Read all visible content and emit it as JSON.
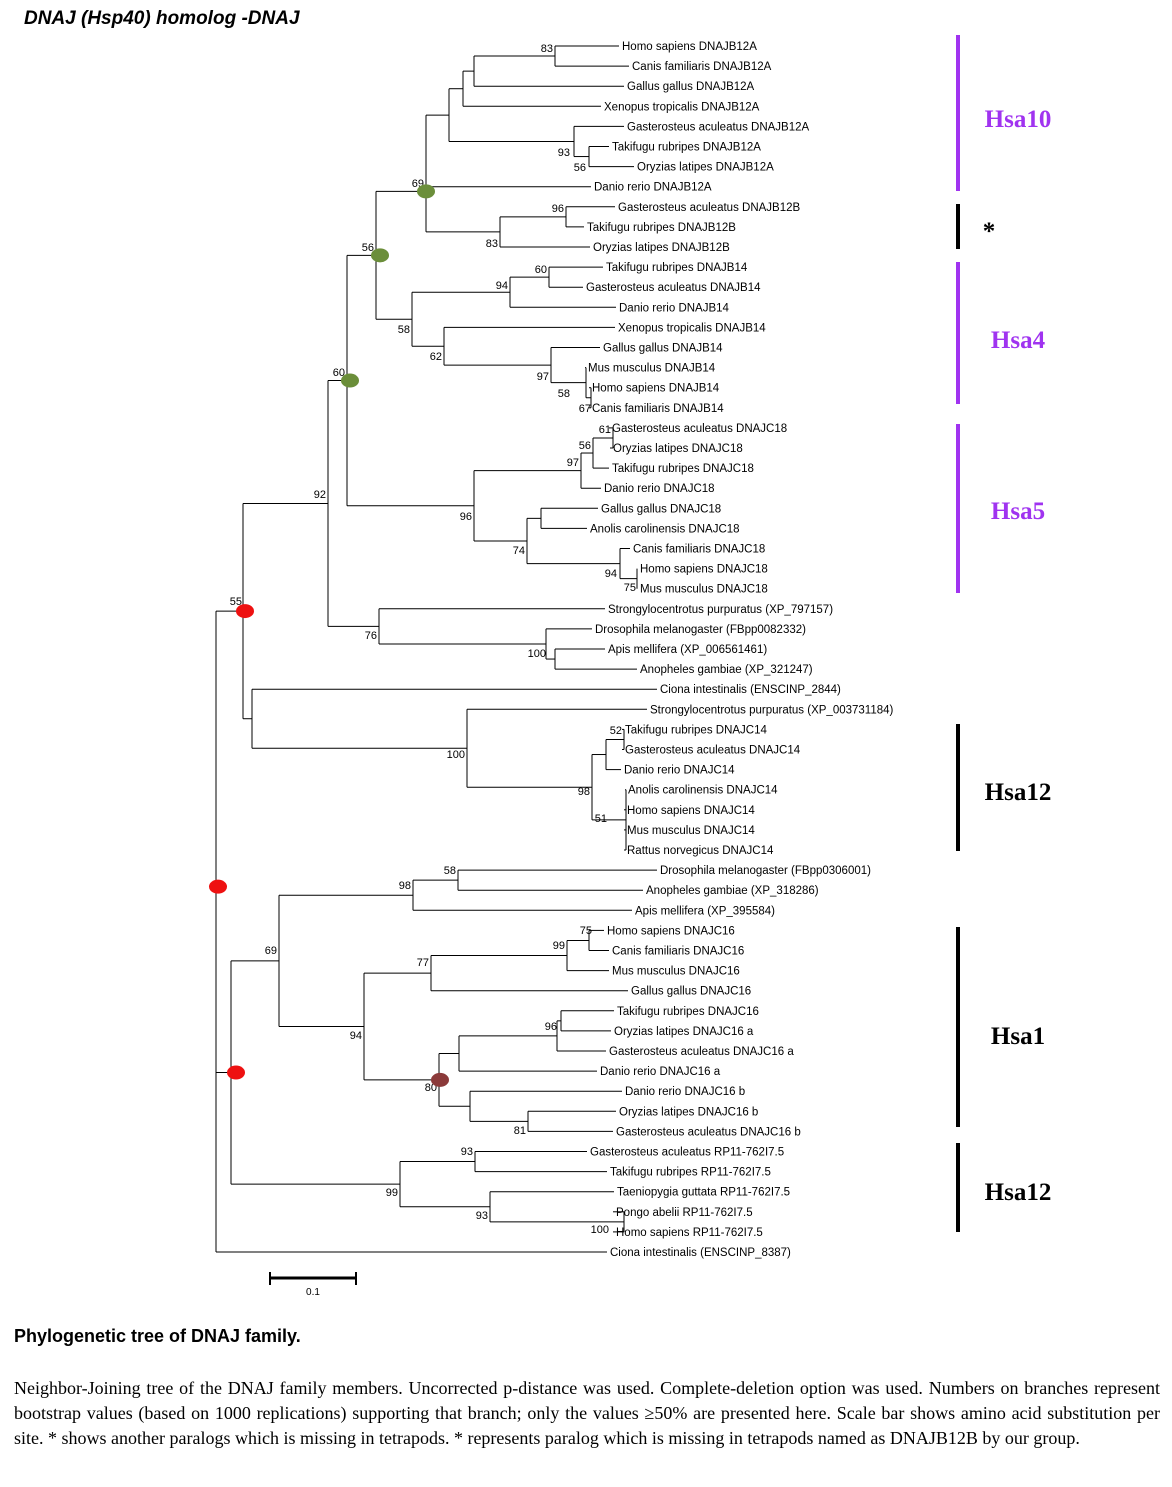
{
  "title": "DNAJ (Hsp40) homolog -DNAJ",
  "colors": {
    "purple": "#a033f0",
    "black": "#000000",
    "green_node": "#6b8e3a",
    "red_node": "#ee1111",
    "brown_node": "#8b3a3a"
  },
  "leaves": [
    "Homo sapiens DNAJB12A",
    "Canis familiaris DNAJB12A",
    "Gallus gallus DNAJB12A",
    "Xenopus tropicalis DNAJB12A",
    "Gasterosteus aculeatus DNAJB12A",
    "Takifugu rubripes DNAJB12A",
    "Oryzias latipes DNAJB12A",
    "Danio rerio DNAJB12A",
    "Gasterosteus aculeatus DNAJB12B",
    "Takifugu rubripes DNAJB12B",
    "Oryzias latipes DNAJB12B",
    "Takifugu rubripes DNAJB14",
    "Gasterosteus aculeatus DNAJB14",
    "Danio rerio DNAJB14",
    "Xenopus tropicalis DNAJB14",
    "Gallus gallus DNAJB14",
    "Mus musculus DNAJB14",
    "Homo sapiens DNAJB14",
    "Canis familiaris DNAJB14",
    "Gasterosteus aculeatus DNAJC18",
    "Oryzias latipes DNAJC18",
    "Takifugu rubripes DNAJC18",
    "Danio rerio DNAJC18",
    "Gallus gallus DNAJC18",
    "Anolis carolinensis DNAJC18",
    "Canis familiaris DNAJC18",
    "Homo sapiens DNAJC18",
    "Mus musculus DNAJC18",
    "Strongylocentrotus purpuratus (XP_797157)",
    "Drosophila melanogaster (FBpp0082332)",
    "Apis mellifera (XP_006561461)",
    "Anopheles gambiae (XP_321247)",
    "Ciona intestinalis (ENSCINP_2844)",
    "Strongylocentrotus purpuratus (XP_003731184)",
    "Takifugu rubripes DNAJC14",
    "Gasterosteus aculeatus DNAJC14",
    "Danio rerio DNAJC14",
    "Anolis carolinensis DNAJC14",
    "Homo sapiens DNAJC14",
    "Mus musculus DNAJC14",
    "Rattus norvegicus DNAJC14",
    "Drosophila melanogaster (FBpp0306001)",
    "Anopheles gambiae (XP_318286)",
    "Apis mellifera (XP_395584)",
    "Homo sapiens DNAJC16",
    "Canis familiaris DNAJC16",
    "Mus musculus DNAJC16",
    "Gallus gallus DNAJC16",
    "Takifugu rubripes DNAJC16",
    "Oryzias latipes DNAJC16 a",
    "Gasterosteus aculeatus DNAJC16 a",
    "Danio rerio DNAJC16 a",
    "Danio rerio DNAJC16 b",
    "Oryzias latipes DNAJC16 b",
    "Gasterosteus aculeatus DNAJC16 b",
    "Gasterosteus aculeatus RP11-762I7.5",
    "Takifugu rubripes RP11-762I7.5",
    "Taeniopygia guttata RP11-762I7.5",
    "Pongo abelii RP11-762I7.5",
    "Homo sapiens RP11-762I7.5",
    "Ciona intestinalis (ENSCINP_8387)"
  ],
  "bootstrap_values": [
    "83",
    "93",
    "56",
    "69",
    "96",
    "83",
    "56",
    "60",
    "94",
    "58",
    "62",
    "97",
    "58",
    "67",
    "61",
    "56",
    "97",
    "96",
    "74",
    "94",
    "75",
    "60",
    "92",
    "76",
    "100",
    "55",
    "52",
    "100",
    "98",
    "51",
    "58",
    "98",
    "69",
    "75",
    "99",
    "77",
    "96",
    "94",
    "80",
    "81",
    "93",
    "99",
    "93",
    "100"
  ],
  "groups": [
    {
      "label": "Hsa10",
      "color": "#a033f0"
    },
    {
      "label": "*",
      "color": "#000000"
    },
    {
      "label": "Hsa4",
      "color": "#a033f0"
    },
    {
      "label": "Hsa5",
      "color": "#a033f0"
    },
    {
      "label": "Hsa12",
      "color": "#000000"
    },
    {
      "label": "Hsa1",
      "color": "#000000"
    },
    {
      "label": "Hsa12",
      "color": "#000000"
    }
  ],
  "scale_bar": {
    "label": "0.1"
  },
  "caption": {
    "title": "Phylogenetic tree of  DNAJ  family.",
    "body": "Neighbor-Joining tree of the  DNAJ family members. Uncorrected p-distance was used. Complete-deletion option was used. Numbers on branches represent bootstrap values (based on 1000 replications) supporting that branch; only the values ≥50% are presented here. Scale bar shows amino acid substitution per site. * shows another paralogs which is missing in tetrapods. * represents paralog which is missing in tetrapods named as DNAJB12B by our group."
  }
}
